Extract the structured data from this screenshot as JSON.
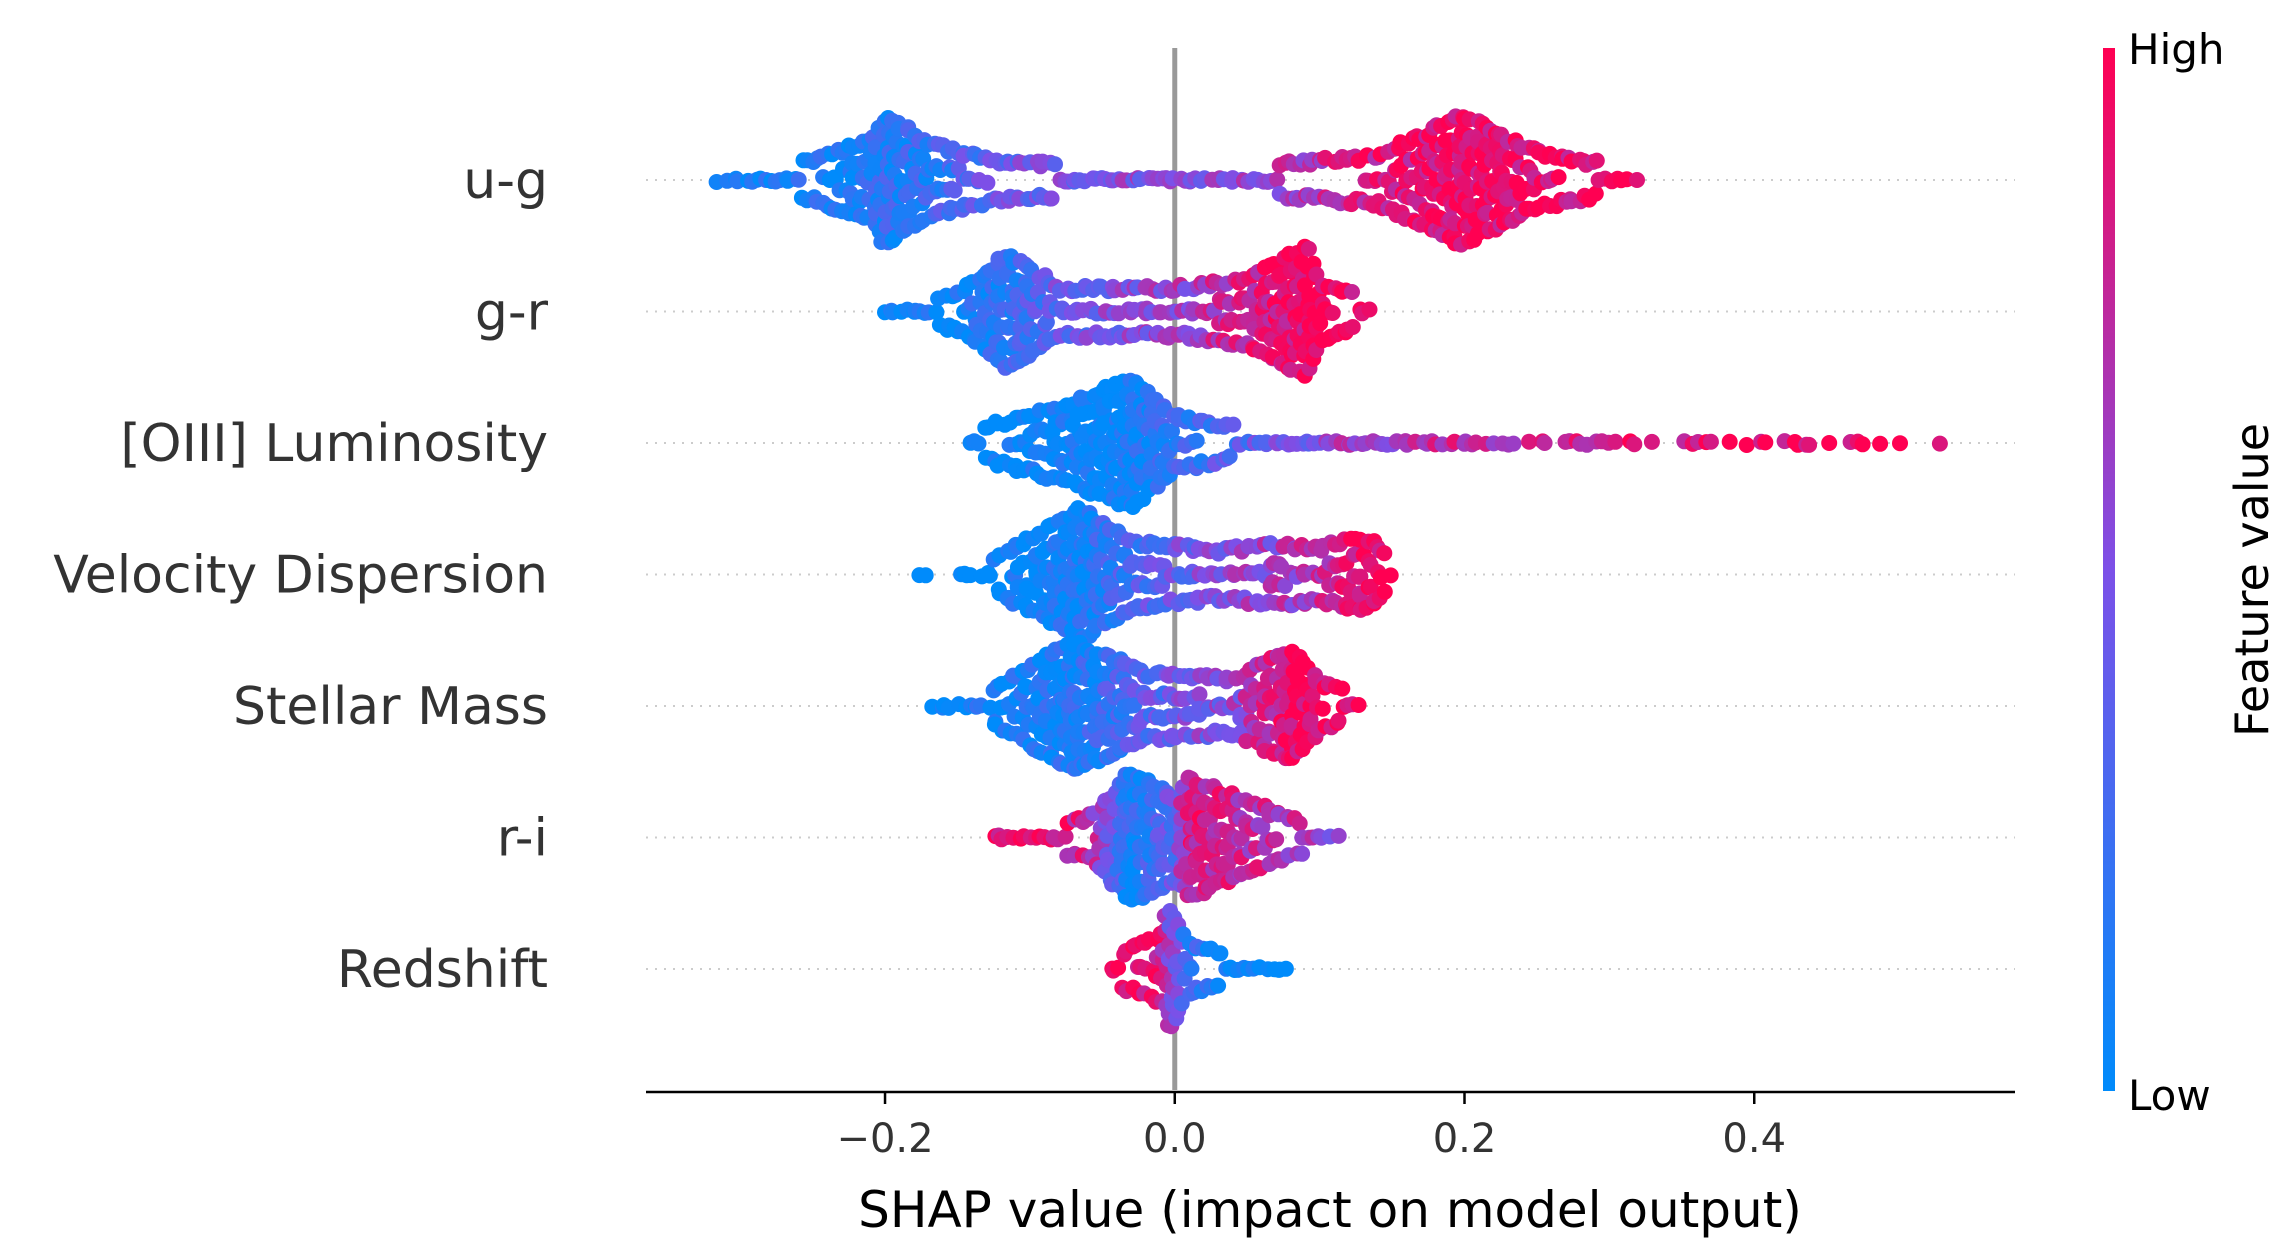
{
  "chart_data": {
    "type": "scatter",
    "subtype": "shap-beeswarm",
    "title": "",
    "xlabel": "SHAP value (impact on model output)",
    "ylabel": "",
    "xlim": [
      -0.365,
      0.58
    ],
    "x_ticks": [
      -0.2,
      0.0,
      0.2,
      0.4
    ],
    "x_tick_labels": [
      "−0.2",
      "0.0",
      "0.2",
      "0.4"
    ],
    "zero_line": 0.0,
    "grid": false,
    "colorbar": {
      "title": "Feature value",
      "high_label": "High",
      "low_label": "Low",
      "low_color": "#008bfb",
      "mid_color": "#7c50e8",
      "high_color": "#ff0052"
    },
    "features": [
      {
        "name": "u-g",
        "profile": [
          [
            -0.32,
            0.05,
            0.0
          ],
          [
            -0.26,
            0.15,
            0.08
          ],
          [
            -0.21,
            0.6,
            0.12
          ],
          [
            -0.2,
            1.0,
            0.15
          ],
          [
            -0.17,
            0.5,
            0.2
          ],
          [
            -0.12,
            0.22,
            0.4
          ],
          [
            -0.05,
            0.12,
            0.5
          ],
          [
            0.05,
            0.12,
            0.6
          ],
          [
            0.14,
            0.3,
            0.85
          ],
          [
            0.2,
            1.0,
            0.95
          ],
          [
            0.25,
            0.35,
            0.9
          ],
          [
            0.32,
            0.06,
            0.92
          ]
        ]
      },
      {
        "name": "g-r",
        "profile": [
          [
            -0.2,
            0.06,
            0.0
          ],
          [
            -0.15,
            0.2,
            0.05
          ],
          [
            -0.115,
            0.85,
            0.2
          ],
          [
            -0.08,
            0.3,
            0.4
          ],
          [
            0.0,
            0.3,
            0.6
          ],
          [
            0.05,
            0.45,
            0.8
          ],
          [
            0.09,
            1.0,
            0.95
          ],
          [
            0.1,
            0.4,
            0.95
          ],
          [
            0.135,
            0.08,
            0.95
          ]
        ]
      },
      {
        "name": "[OIII] Luminosity",
        "profile": [
          [
            -0.14,
            0.1,
            0.0
          ],
          [
            -0.07,
            0.6,
            0.02
          ],
          [
            -0.03,
            1.0,
            0.05
          ],
          [
            0.0,
            0.35,
            0.2
          ],
          [
            0.05,
            0.12,
            0.35
          ],
          [
            0.13,
            0.1,
            0.65
          ],
          [
            0.2,
            0.08,
            0.75
          ],
          [
            0.3,
            0.05,
            0.82
          ],
          [
            0.4,
            0.04,
            0.92
          ],
          [
            0.53,
            0.03,
            1.0
          ]
        ]
      },
      {
        "name": "Velocity Dispersion",
        "profile": [
          [
            -0.2,
            0.02,
            0.0
          ],
          [
            -0.13,
            0.08,
            0.02
          ],
          [
            -0.065,
            1.0,
            0.08
          ],
          [
            -0.03,
            0.45,
            0.3
          ],
          [
            0.03,
            0.3,
            0.5
          ],
          [
            0.07,
            0.4,
            0.6
          ],
          [
            0.1,
            0.35,
            0.75
          ],
          [
            0.13,
            0.55,
            0.95
          ],
          [
            0.15,
            0.12,
            0.95
          ]
        ]
      },
      {
        "name": "Stellar Mass",
        "profile": [
          [
            -0.18,
            0.02,
            0.0
          ],
          [
            -0.13,
            0.12,
            0.05
          ],
          [
            -0.07,
            1.0,
            0.1
          ],
          [
            -0.02,
            0.45,
            0.35
          ],
          [
            0.04,
            0.35,
            0.55
          ],
          [
            0.08,
            0.85,
            0.95
          ],
          [
            0.1,
            0.3,
            0.95
          ],
          [
            0.13,
            0.05,
            0.95
          ]
        ]
      },
      {
        "name": "r-i",
        "profile": [
          [
            -0.125,
            0.06,
            0.95
          ],
          [
            -0.06,
            0.2,
            0.8
          ],
          [
            -0.03,
            1.0,
            0.1
          ],
          [
            0.0,
            0.6,
            0.4
          ],
          [
            0.01,
            0.9,
            0.85
          ],
          [
            0.05,
            0.5,
            0.75
          ],
          [
            0.08,
            0.2,
            0.7
          ],
          [
            0.115,
            0.05,
            0.6
          ]
        ]
      },
      {
        "name": "Redshift",
        "profile": [
          [
            -0.045,
            0.1,
            0.95
          ],
          [
            -0.01,
            0.45,
            0.9
          ],
          [
            -0.005,
            1.0,
            0.6
          ],
          [
            0.01,
            0.3,
            0.2
          ],
          [
            0.04,
            0.12,
            0.0
          ],
          [
            0.1,
            0.02,
            0.0
          ]
        ]
      }
    ]
  }
}
